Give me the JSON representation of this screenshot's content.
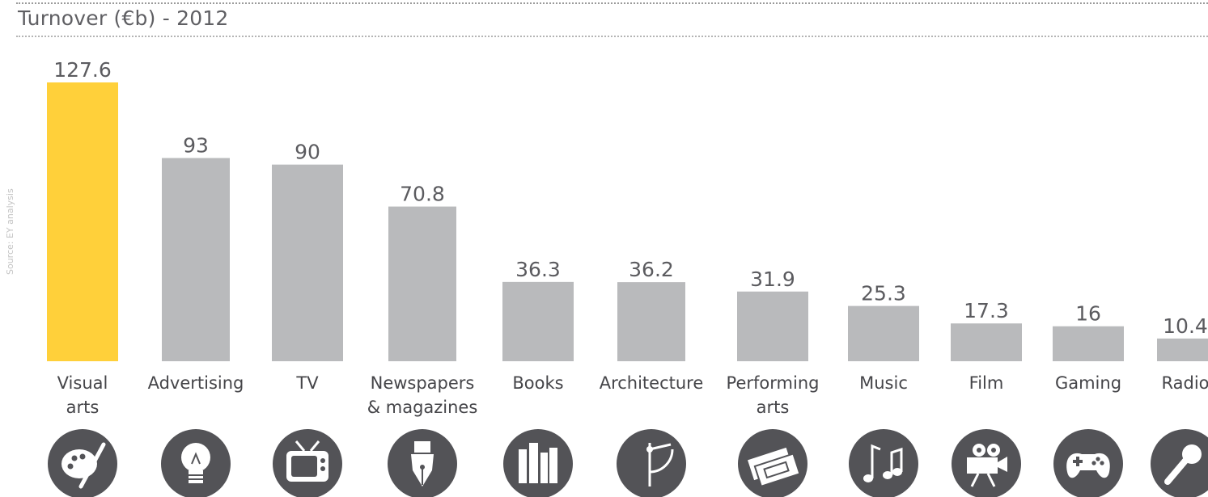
{
  "source": "Source: EY analysis",
  "chart_data": {
    "type": "bar",
    "title": "Turnover (€b) - 2012",
    "xlabel": "",
    "ylabel": "",
    "ylim": [
      0,
      127.6
    ],
    "categories": [
      [
        "Visual",
        "arts"
      ],
      [
        "Advertising"
      ],
      [
        "TV"
      ],
      [
        "Newspapers",
        "& magazines"
      ],
      [
        "Books"
      ],
      [
        "Architecture"
      ],
      [
        "Performing",
        "arts"
      ],
      [
        "Music"
      ],
      [
        "Film"
      ],
      [
        "Gaming"
      ],
      [
        "Radio"
      ]
    ],
    "values": [
      127.6,
      93,
      90,
      70.8,
      36.3,
      36.2,
      31.9,
      25.3,
      17.3,
      16,
      10.4
    ],
    "value_labels": [
      "127.6",
      "93",
      "90",
      "70.8",
      "36.3",
      "36.2",
      "31.9",
      "25.3",
      "17.3",
      "16",
      "10.4"
    ],
    "highlight_index": 0,
    "colors": {
      "bar": "#b9babc",
      "highlight": "#ffd03a",
      "icon_circle": "#535357",
      "icon_fg": "#ffffff"
    },
    "icons": [
      "palette-icon",
      "lightbulb-icon",
      "tv-icon",
      "pen-nib-icon",
      "books-icon",
      "compass-icon",
      "tickets-icon",
      "music-notes-icon",
      "film-camera-icon",
      "gamepad-icon",
      "microphone-icon"
    ],
    "grid": false,
    "legend": "none"
  }
}
